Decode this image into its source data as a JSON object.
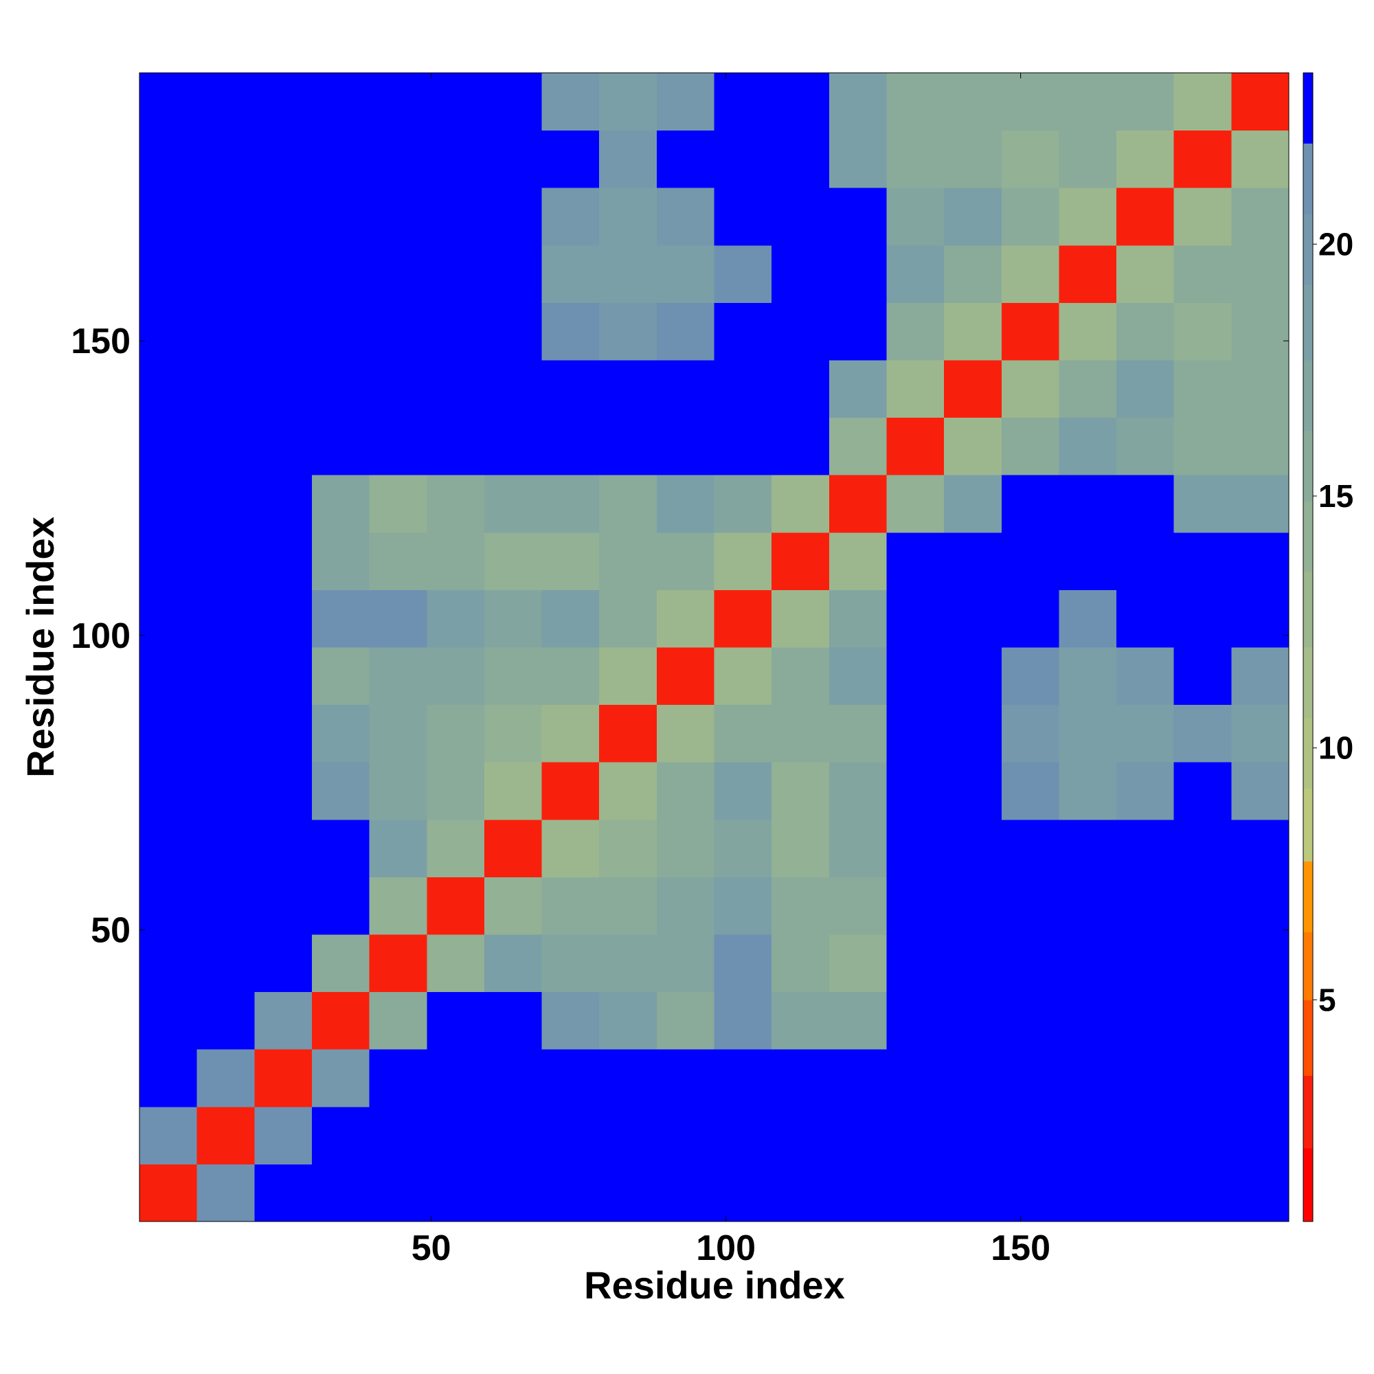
{
  "chart_data": {
    "type": "heatmap",
    "xlabel": "Residue index",
    "ylabel": "Residue index",
    "xlim": [
      0.5,
      195.5
    ],
    "ylim": [
      0.5,
      195.5
    ],
    "xticks": [
      50,
      100,
      150
    ],
    "yticks": [
      50,
      100,
      150
    ],
    "xbins": [
      0.5,
      10.25,
      20,
      29.75,
      39.5,
      49.25,
      59,
      68.75,
      78.5,
      88.25,
      98,
      107.75,
      117.5,
      127.25,
      137,
      146.75,
      156.5,
      166.25,
      176,
      185.75,
      195.5
    ],
    "ybins": [
      0.5,
      10.25,
      20,
      29.75,
      39.5,
      49.25,
      59,
      68.75,
      78.5,
      88.25,
      98,
      107.75,
      117.5,
      127.25,
      137,
      146.75,
      156.5,
      166.25,
      176,
      185.75,
      195.5
    ],
    "z": [
      [
        3,
        21,
        23.4,
        23.4,
        23.4,
        23.4,
        23.4,
        23.4,
        23.4,
        23.4,
        23.4,
        23.4,
        23.4,
        23.4,
        23.4,
        23.4,
        23.4,
        23.4,
        23.4,
        23.4
      ],
      [
        21,
        3,
        21,
        23.4,
        23.4,
        23.4,
        23.4,
        23.4,
        23.4,
        23.4,
        23.4,
        23.4,
        23.4,
        23.4,
        23.4,
        23.4,
        23.4,
        23.4,
        23.4,
        23.4
      ],
      [
        23.4,
        21,
        3,
        20,
        23.4,
        23.4,
        23.4,
        23.4,
        23.4,
        23.4,
        23.4,
        23.4,
        23.4,
        23.4,
        23.4,
        23.4,
        23.4,
        23.4,
        23.4,
        23.4
      ],
      [
        23.4,
        23.4,
        20,
        3,
        16,
        23.4,
        23.4,
        20,
        19,
        16,
        21,
        17,
        17,
        23.4,
        23.4,
        23.4,
        23.4,
        23.4,
        23.4,
        23.4
      ],
      [
        23.4,
        23.4,
        23.4,
        16,
        3,
        14,
        18,
        17,
        17,
        17,
        21,
        15,
        14,
        23.4,
        23.4,
        23.4,
        23.4,
        23.4,
        23.4,
        23.4
      ],
      [
        23.4,
        23.4,
        23.4,
        23.4,
        14,
        3,
        14,
        15,
        15,
        17,
        19,
        15,
        16,
        23.4,
        23.4,
        23.4,
        23.4,
        23.4,
        23.4,
        23.4
      ],
      [
        23.4,
        23.4,
        23.4,
        23.4,
        18,
        14,
        3,
        13,
        14,
        16,
        17,
        14,
        17,
        23.4,
        23.4,
        23.4,
        23.4,
        23.4,
        23.4,
        23.4
      ],
      [
        23.4,
        23.4,
        23.4,
        20,
        17,
        15,
        13,
        3,
        13,
        15,
        18,
        14,
        17,
        23.4,
        23.4,
        21,
        19,
        20,
        23.4,
        20
      ],
      [
        23.4,
        23.4,
        23.4,
        19,
        17,
        15,
        14,
        13,
        3,
        13,
        16,
        15,
        16,
        23.4,
        23.4,
        20,
        18,
        19,
        20,
        19
      ],
      [
        23.4,
        23.4,
        23.4,
        16,
        17,
        17,
        16,
        15,
        13,
        3,
        13,
        15,
        18,
        23.4,
        23.4,
        21,
        18,
        20,
        23.4,
        20
      ],
      [
        23.4,
        23.4,
        23.4,
        21,
        21,
        19,
        17,
        18,
        16,
        13,
        3,
        13,
        17,
        23.4,
        23.4,
        23.4,
        21,
        23.4,
        23.4,
        23.4
      ],
      [
        23.4,
        23.4,
        23.4,
        17,
        15,
        15,
        14,
        14,
        15,
        15,
        13,
        3,
        13,
        23.4,
        23.4,
        23.4,
        23.4,
        23.4,
        23.4,
        23.4
      ],
      [
        23.4,
        23.4,
        23.4,
        17,
        14,
        16,
        17,
        17,
        16,
        18,
        17,
        13,
        3,
        14,
        19,
        23.4,
        23.4,
        23.4,
        19,
        18
      ],
      [
        23.4,
        23.4,
        23.4,
        23.4,
        23.4,
        23.4,
        23.4,
        23.4,
        23.4,
        23.4,
        23.4,
        23.4,
        14,
        3,
        13,
        16,
        19,
        17,
        16,
        15
      ],
      [
        23.4,
        23.4,
        23.4,
        23.4,
        23.4,
        23.4,
        23.4,
        23.4,
        23.4,
        23.4,
        23.4,
        23.4,
        19,
        13,
        3,
        13,
        15,
        18,
        15,
        16
      ],
      [
        23.4,
        23.4,
        23.4,
        23.4,
        23.4,
        23.4,
        23.4,
        21,
        20,
        21,
        23.4,
        23.4,
        23.4,
        16,
        13,
        3,
        13,
        15,
        14,
        16
      ],
      [
        23.4,
        23.4,
        23.4,
        23.4,
        23.4,
        23.4,
        23.4,
        19,
        18,
        18,
        21,
        23.4,
        23.4,
        19,
        15,
        13,
        3,
        13,
        15,
        15
      ],
      [
        23.4,
        23.4,
        23.4,
        23.4,
        23.4,
        23.4,
        23.4,
        20,
        19,
        20,
        23.4,
        23.4,
        23.4,
        17,
        18,
        15,
        13,
        3,
        13,
        15
      ],
      [
        23.4,
        23.4,
        23.4,
        23.4,
        23.4,
        23.4,
        23.4,
        23.4,
        20,
        23.4,
        23.4,
        23.4,
        19,
        16,
        15,
        14,
        15,
        13,
        3,
        12
      ],
      [
        23.4,
        23.4,
        23.4,
        23.4,
        23.4,
        23.4,
        23.4,
        20,
        19,
        20,
        23.4,
        23.4,
        18,
        15,
        16,
        16,
        15,
        15,
        12,
        3
      ]
    ],
    "colorbar": {
      "levels": [
        0.6,
        2.06,
        3.5,
        5,
        6.35,
        7.75,
        9.2,
        10.6,
        12,
        13.5,
        14.9,
        16.3,
        17.7,
        19.2,
        20.6,
        22,
        23.4
      ],
      "colors": [
        "#ff0000",
        "#f8200c",
        "#ff5000",
        "#ff7a00",
        "#ff9500",
        "#bcc87c",
        "#b0c283",
        "#a6bd89",
        "#9cb78e",
        "#93b194",
        "#8aab9a",
        "#82a5a0",
        "#7b9fa6",
        "#7598ac",
        "#6e91b2",
        "#0000ff"
      ],
      "ticks": [
        5,
        10,
        15,
        20
      ]
    }
  }
}
